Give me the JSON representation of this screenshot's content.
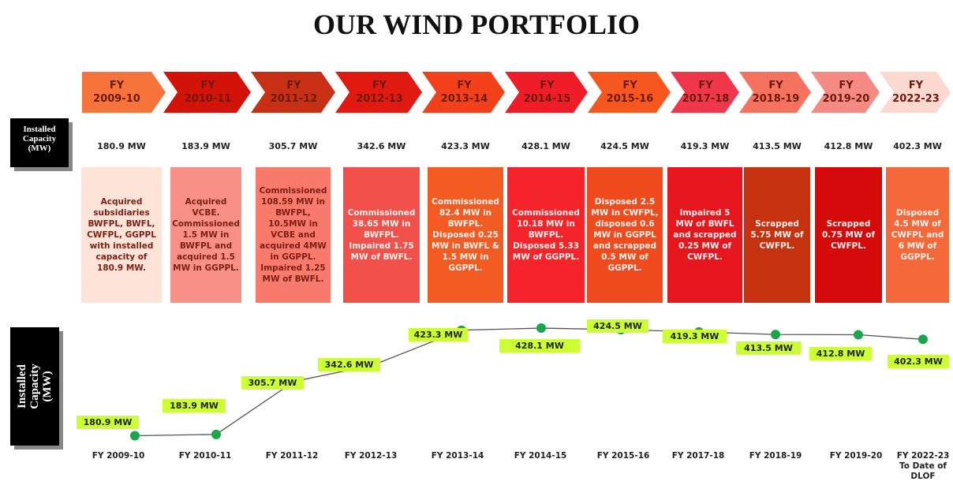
{
  "title": "OUR WIND PORTFOLIO",
  "capacity_label": "Installed\nCapacity\n(MW)",
  "timeline": {
    "headers": [
      "FY\n2009-10",
      "FY\n2010-11",
      "FY\n2011-12",
      "FY\n2012-13",
      "FY\n2013-14",
      "FY\n2014-15",
      "FY\n2015-16",
      "FY\n2017-18",
      "FY\n2018-19",
      "FY\n2019-20",
      "FY\n2022-23"
    ],
    "header_colors": [
      "#f7733c",
      "#d3120a",
      "#c73015",
      "#e01a10",
      "#f2401a",
      "#ef1d2a",
      "#f5571f",
      "#f0364a",
      "#f4725e",
      "#f58a85",
      "#fcd9d0"
    ],
    "capacities": [
      "180.9 MW",
      "183.9 MW",
      "305.7 MW",
      "342.6 MW",
      "423.3 MW",
      "428.1 MW",
      "424.5 MW",
      "419.3 MW",
      "413.5 MW",
      "412.8 MW",
      "402.3 MW"
    ],
    "descriptions": [
      "Acquired subsidiaries BWFPL, BWFL, CWFPL, GGPPL with installed capacity of 180.9 MW.",
      "Acquired VCBE. Commissioned 1.5 MW in BWFPL and acquired 1.5 MW in GGPPL.",
      "Commissioned 108.59 MW in BWFPL, 10.5MW in VCBE and acquired 4MW in GGPPL. Impaired 1.25 MW of BWFL.",
      "Commissioned 38.65 MW in BWFPL. Impaired 1.75 MW of BWFL.",
      "Commissioned 82.4 MW in BWFPL. Disposed 0.25 MW in BWFL & 1.5 MW in GGPPL.",
      "Commissioned 10.18 MW in BWFPL. Disposed 5.33 MW of GGPPL.",
      "Disposed 2.5 MW in CWFPL, disposed 0.6 MW in GGPPL and scrapped 0.5 MW of GGPPL.",
      "Impaired 5 MW of BWFL and scrapped 0.25 MW of CWFPL.",
      "Scrapped 5.75 MW of CWFPL.",
      "Scrapped 0.75 MW of CWFPL.",
      "Disposed 4.5 MW of CWFPL and 6 MW of GGPPL."
    ],
    "box_colors": [
      "#fde3d8",
      "#f99088",
      "#f77a6d",
      "#f2504a",
      "#f25b22",
      "#f5232a",
      "#f04b1f",
      "#e5161e",
      "#c63210",
      "#d50b0b",
      "#f5683a"
    ]
  },
  "chart_data": {
    "type": "line",
    "y_label": "Installed\nCapacity\n(MW)",
    "categories": [
      "FY 2009-10",
      "FY 2010-11",
      "FY 2011-12",
      "FY 2012-13",
      "FY 2013-14",
      "FY 2014-15",
      "FY 2015-16",
      "FY 2017-18",
      "FY 2018-19",
      "FY 2019-20",
      "FY 2022-23\nTo Date of\nDLOF"
    ],
    "values": [
      180.9,
      183.9,
      305.7,
      342.6,
      423.3,
      428.1,
      424.5,
      419.3,
      413.5,
      412.8,
      402.3
    ],
    "value_labels": [
      "180.9 MW",
      "183.9 MW",
      "305.7 MW",
      "342.6 MW",
      "423.3 MW",
      "428.1 MW",
      "424.5 MW",
      "419.3 MW",
      "413.5 MW",
      "412.8 MW",
      "402.3 MW"
    ],
    "ylim": [
      180,
      430
    ],
    "line_color": "#555555",
    "marker_color": "#1aa64a",
    "label_color": "#ccff33"
  }
}
